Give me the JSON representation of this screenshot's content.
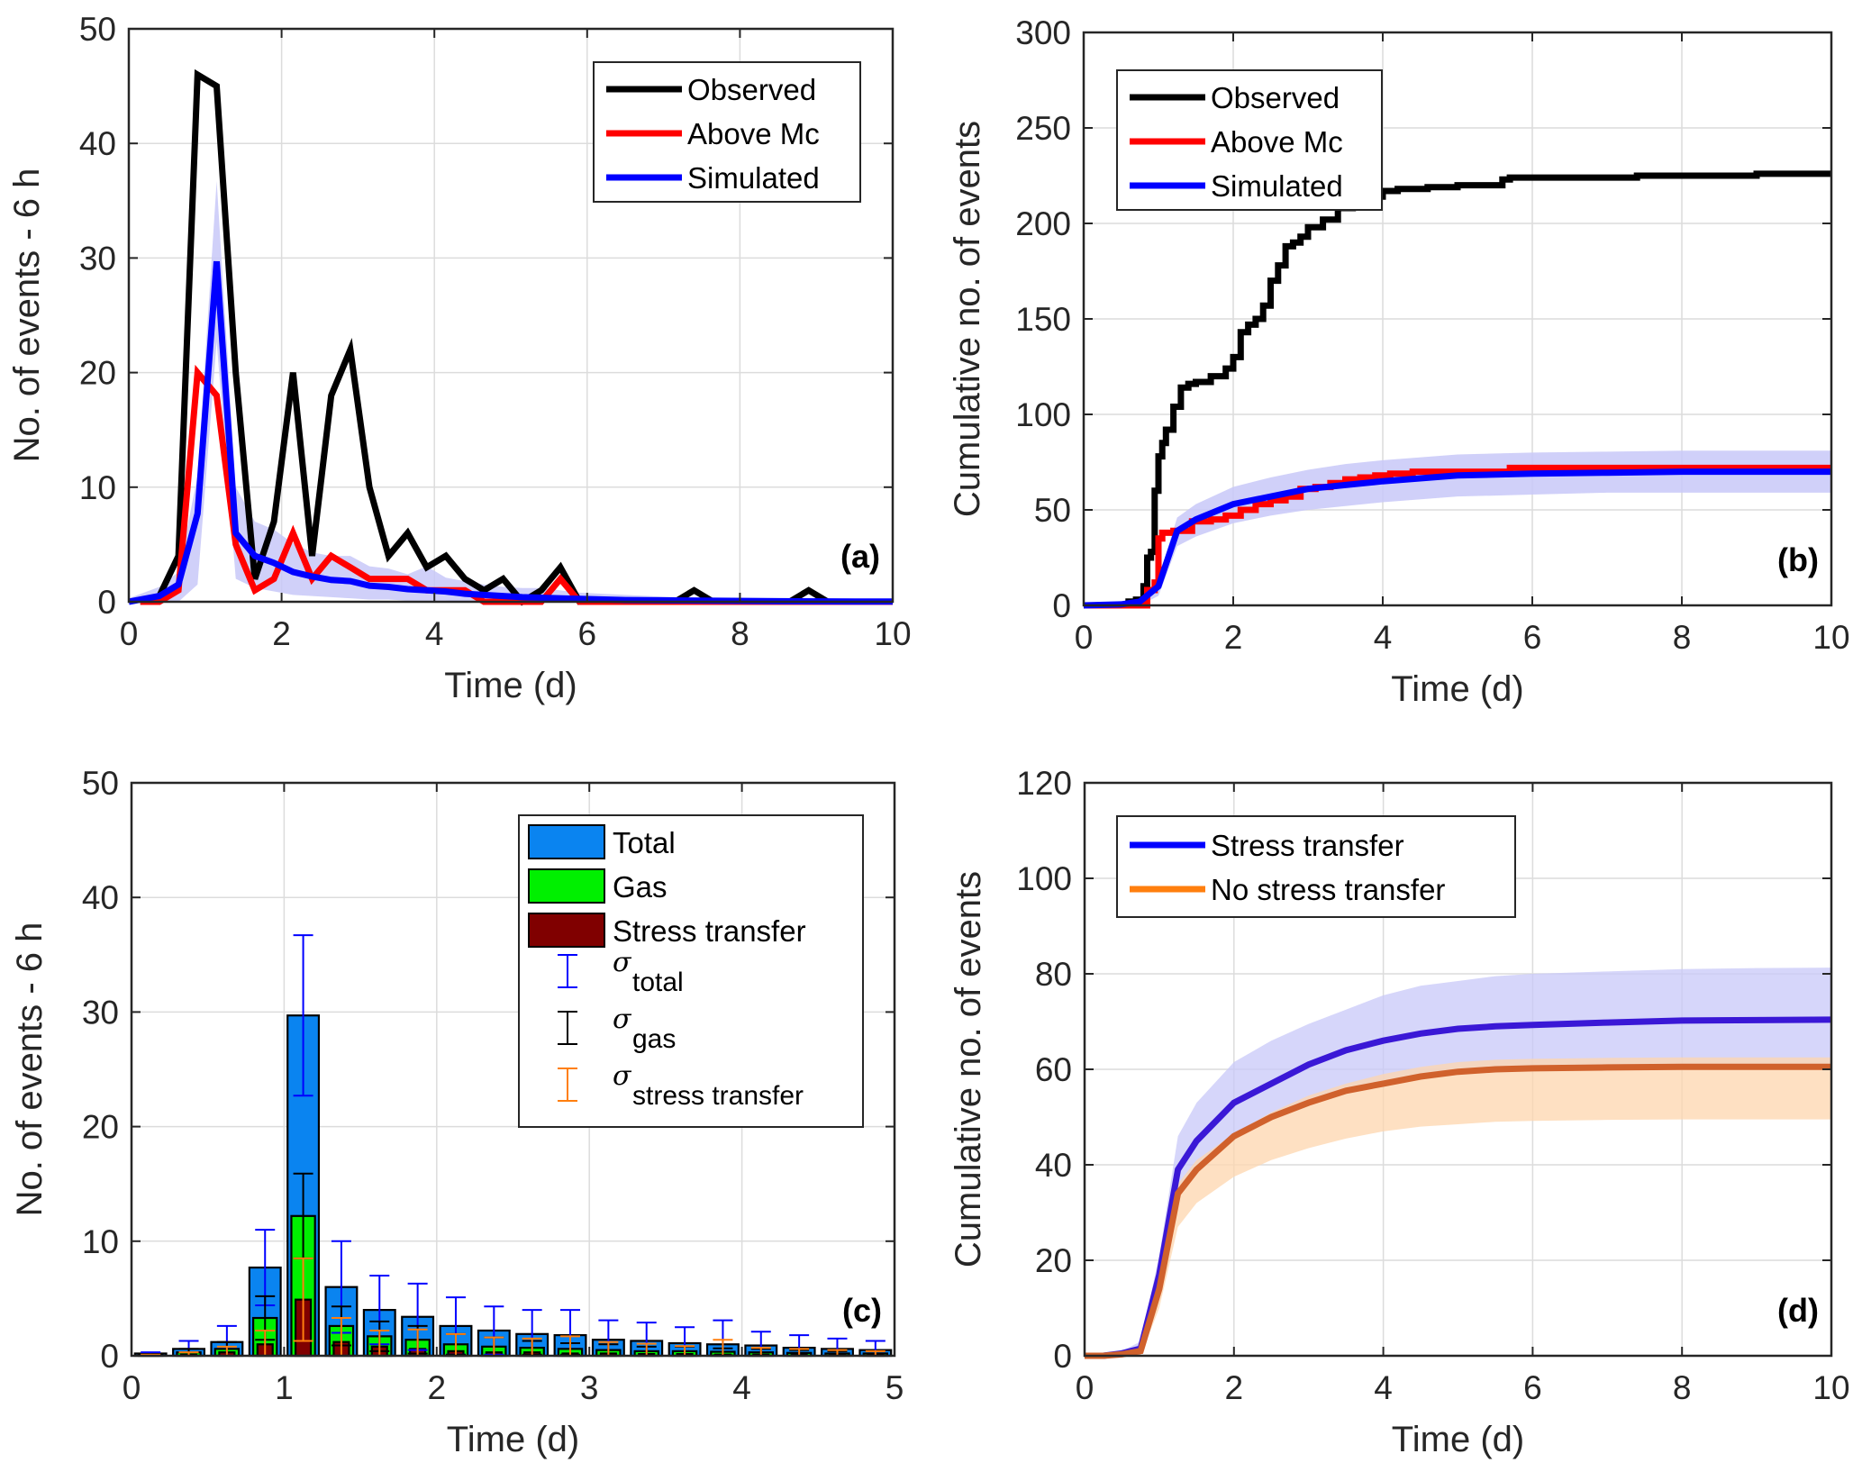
{
  "figure": {
    "panels": [
      "a",
      "b",
      "c",
      "d"
    ]
  },
  "chart_data": [
    {
      "id": "a",
      "type": "line",
      "panel_label": "(a)",
      "title": "",
      "xlabel": "Time (d)",
      "ylabel": "No. of events - 6 h",
      "xlim": [
        0,
        10
      ],
      "ylim": [
        0,
        50
      ],
      "xticks": [
        0,
        2,
        4,
        6,
        8,
        10
      ],
      "yticks": [
        0,
        10,
        20,
        30,
        40,
        50
      ],
      "grid": true,
      "legend_position": "top-right",
      "series": [
        {
          "name": "Observed",
          "color": "#000000",
          "x": [
            0.15,
            0.4,
            0.65,
            0.9,
            1.15,
            1.4,
            1.65,
            1.9,
            2.15,
            2.4,
            2.65,
            2.9,
            3.15,
            3.4,
            3.65,
            3.9,
            4.15,
            4.4,
            4.65,
            4.9,
            5.15,
            5.4,
            5.65,
            5.9,
            6.15,
            6.9,
            7.15,
            7.4,
            7.65,
            8.4,
            8.65,
            8.9,
            9.15,
            9.4,
            10.0
          ],
          "y": [
            0,
            0.5,
            4,
            46,
            45,
            20,
            2,
            7,
            20,
            4,
            18,
            22,
            10,
            4,
            6,
            3,
            4,
            2,
            1,
            2,
            0,
            1,
            3,
            0,
            0,
            0,
            0,
            1,
            0,
            0,
            0,
            1,
            0,
            0,
            0
          ]
        },
        {
          "name": "Above Mc",
          "color": "#ff0000",
          "x": [
            0.15,
            0.4,
            0.65,
            0.9,
            1.15,
            1.4,
            1.65,
            1.9,
            2.15,
            2.4,
            2.65,
            2.9,
            3.15,
            3.4,
            3.65,
            3.9,
            4.15,
            4.4,
            4.65,
            4.9,
            5.15,
            5.4,
            5.65,
            5.9,
            6.5,
            7.5,
            8.5,
            9.5,
            10.0
          ],
          "y": [
            0,
            0,
            1,
            20,
            18,
            5,
            1,
            2,
            6,
            2,
            4,
            3,
            2,
            2,
            2,
            1,
            1,
            1,
            0,
            0,
            0,
            0,
            2,
            0,
            0,
            0,
            0,
            0,
            0
          ]
        },
        {
          "name": "Simulated",
          "color": "#0000ff",
          "x": [
            0.0,
            0.4,
            0.65,
            0.9,
            1.15,
            1.4,
            1.65,
            1.9,
            2.15,
            2.4,
            2.65,
            2.9,
            3.15,
            3.4,
            3.65,
            3.9,
            4.15,
            4.4,
            4.65,
            4.9,
            5.15,
            5.4,
            5.9,
            6.5,
            7.5,
            8.5,
            9.5,
            10.0
          ],
          "y": [
            0,
            0.5,
            1.5,
            7.7,
            29.7,
            6.0,
            4.0,
            3.4,
            2.6,
            2.2,
            1.9,
            1.8,
            1.4,
            1.3,
            1.1,
            1.0,
            0.9,
            0.7,
            0.6,
            0.5,
            0.4,
            0.35,
            0.25,
            0.15,
            0.1,
            0.05,
            0.02,
            0.02
          ],
          "band_lower": [
            0,
            0,
            0,
            1.5,
            22.7,
            2.0,
            1.2,
            0.9,
            0.6,
            0.5,
            0.4,
            0.3,
            0.2,
            0.2,
            0.1,
            0.1,
            0.1,
            0,
            0,
            0,
            0,
            0,
            0,
            0,
            0,
            0,
            0,
            0
          ],
          "band_upper": [
            0.3,
            1.3,
            2.6,
            11.0,
            36.7,
            10.0,
            7.0,
            6.3,
            5.1,
            4.3,
            4.0,
            4.0,
            3.1,
            2.9,
            2.4,
            3.1,
            2.1,
            1.8,
            1.5,
            1.3,
            1.2,
            1.2,
            0.8,
            0.6,
            0.3,
            0.2,
            0.1,
            0.1
          ],
          "band_color": "#c8c8f8"
        }
      ]
    },
    {
      "id": "b",
      "type": "line",
      "panel_label": "(b)",
      "title": "",
      "xlabel": "Time (d)",
      "ylabel": "Cumulative no. of events",
      "xlim": [
        0,
        10
      ],
      "ylim": [
        0,
        300
      ],
      "xticks": [
        0,
        2,
        4,
        6,
        8,
        10
      ],
      "yticks": [
        0,
        50,
        100,
        150,
        200,
        250,
        300
      ],
      "grid": true,
      "legend_position": "top-left",
      "series": [
        {
          "name": "Observed",
          "color": "#000000",
          "step": true,
          "x": [
            0,
            0.6,
            0.7,
            0.8,
            0.85,
            0.9,
            0.95,
            1.0,
            1.05,
            1.1,
            1.2,
            1.3,
            1.4,
            1.5,
            1.7,
            1.9,
            2.0,
            2.1,
            2.2,
            2.3,
            2.4,
            2.5,
            2.6,
            2.7,
            2.8,
            2.9,
            3.0,
            3.2,
            3.4,
            3.6,
            3.8,
            4.0,
            4.2,
            4.4,
            4.6,
            5.0,
            5.6,
            5.7,
            7.0,
            7.4,
            8.9,
            9.0,
            10.0
          ],
          "y": [
            0,
            2,
            3,
            10,
            25,
            28,
            60,
            78,
            85,
            92,
            104,
            114,
            116,
            117,
            120,
            124,
            130,
            143,
            147,
            150,
            157,
            170,
            178,
            188,
            190,
            193,
            198,
            202,
            208,
            211,
            214,
            217,
            218,
            218,
            219,
            220,
            223,
            224,
            224,
            225,
            225,
            226,
            226
          ]
        },
        {
          "name": "Above Mc",
          "color": "#ff0000",
          "step": true,
          "x": [
            0,
            0.7,
            0.85,
            0.95,
            1.0,
            1.05,
            1.2,
            1.45,
            1.7,
            1.9,
            2.1,
            2.3,
            2.5,
            2.7,
            2.9,
            3.1,
            3.3,
            3.5,
            3.7,
            3.9,
            4.1,
            4.4,
            4.6,
            5.6,
            5.7,
            10.0
          ],
          "y": [
            0,
            0,
            8,
            12,
            35,
            38,
            39,
            44,
            45,
            47,
            50,
            53,
            55,
            57,
            61,
            62,
            64,
            66,
            67,
            68,
            69,
            70,
            70,
            70,
            72,
            72
          ]
        },
        {
          "name": "Simulated",
          "color": "#0000ff",
          "x": [
            0,
            0.5,
            0.75,
            1.0,
            1.25,
            1.5,
            2.0,
            2.5,
            3.0,
            3.5,
            4.0,
            5.0,
            6.0,
            7.0,
            8.0,
            9.0,
            10.0
          ],
          "y": [
            0,
            0.5,
            2,
            10,
            39,
            45,
            53,
            57,
            61,
            63,
            65,
            68,
            69,
            69.5,
            70,
            70,
            70
          ],
          "band_lower": [
            0,
            0,
            0,
            5,
            31,
            36,
            43,
            47,
            50,
            52,
            54,
            57,
            58,
            59,
            59,
            59,
            59
          ],
          "band_upper": [
            0.5,
            1,
            3,
            14,
            46,
            53,
            62,
            67,
            71,
            74,
            76,
            79,
            80,
            80.5,
            81,
            81,
            81
          ],
          "band_color": "#c8c8f8"
        }
      ]
    },
    {
      "id": "c",
      "type": "bar",
      "panel_label": "(c)",
      "title": "",
      "xlabel": "Time (d)",
      "ylabel": "No. of events - 6 h",
      "xlim": [
        0,
        5
      ],
      "ylim": [
        0,
        50
      ],
      "xticks": [
        0,
        1,
        2,
        3,
        4,
        5
      ],
      "yticks": [
        0,
        10,
        20,
        30,
        40,
        50
      ],
      "grid": true,
      "legend_position": "top-right",
      "bin_width_days": 0.25,
      "categories": [
        0.125,
        0.375,
        0.625,
        0.875,
        1.125,
        1.375,
        1.625,
        1.875,
        2.125,
        2.375,
        2.625,
        2.875,
        3.125,
        3.375,
        3.625,
        3.875,
        4.125,
        4.375,
        4.625,
        4.875
      ],
      "series": [
        {
          "name": "Total",
          "color": "#0a84f0",
          "values": [
            0.2,
            0.6,
            1.2,
            7.7,
            29.7,
            6.0,
            4.0,
            3.4,
            2.6,
            2.2,
            1.9,
            1.8,
            1.4,
            1.3,
            1.1,
            1.0,
            0.9,
            0.7,
            0.6,
            0.5
          ],
          "error": [
            0.1,
            0.7,
            1.4,
            3.3,
            7.0,
            4.0,
            3.0,
            2.9,
            2.5,
            2.1,
            2.1,
            2.2,
            1.7,
            1.6,
            1.4,
            2.1,
            1.2,
            1.1,
            0.9,
            0.8
          ],
          "error_color": "#0000ff"
        },
        {
          "name": "Gas",
          "color": "#00f000",
          "values": [
            0.1,
            0.3,
            0.6,
            3.3,
            12.2,
            2.6,
            1.7,
            1.4,
            1.0,
            0.8,
            0.7,
            0.6,
            0.5,
            0.4,
            0.4,
            0.35,
            0.3,
            0.25,
            0.2,
            0.2
          ],
          "error": [
            0.05,
            0.3,
            0.6,
            1.9,
            3.7,
            1.7,
            1.3,
            1.2,
            0.9,
            0.8,
            0.6,
            0.5,
            0.5,
            0.4,
            0.4,
            0.3,
            0.3,
            0.25,
            0.2,
            0.2
          ],
          "error_color": "#000000"
        },
        {
          "name": "Stress transfer",
          "color": "#800000",
          "values": [
            0.05,
            0.1,
            0.3,
            1.0,
            4.9,
            1.2,
            0.8,
            0.6,
            0.4,
            0.3,
            0.3,
            0.2,
            0.2,
            0.15,
            0.15,
            0.1,
            0.1,
            0.1,
            0.1,
            0.1
          ],
          "error": [
            0.05,
            0.2,
            0.5,
            1.2,
            3.6,
            2.1,
            1.4,
            1.7,
            1.5,
            1.3,
            1.2,
            1.5,
            1.0,
            0.9,
            0.7,
            1.3,
            0.6,
            0.5,
            0.4,
            0.3
          ],
          "error_color": "#ff7f0e"
        }
      ],
      "legend_entries": [
        {
          "label": "Total",
          "kind": "patch",
          "color": "#0a84f0"
        },
        {
          "label": "Gas",
          "kind": "patch",
          "color": "#00f000"
        },
        {
          "label": "Stress transfer",
          "kind": "patch",
          "color": "#800000"
        },
        {
          "symbol": "σ",
          "subscript": "total",
          "kind": "errorbar",
          "color": "#0000ff"
        },
        {
          "symbol": "σ",
          "subscript": "gas",
          "kind": "errorbar",
          "color": "#000000"
        },
        {
          "symbol": "σ",
          "subscript": "stress transfer",
          "kind": "errorbar",
          "color": "#ff7f0e"
        }
      ]
    },
    {
      "id": "d",
      "type": "line",
      "panel_label": "(d)",
      "title": "",
      "xlabel": "Time (d)",
      "ylabel": "Cumulative no. of events",
      "xlim": [
        0,
        10
      ],
      "ylim": [
        0,
        120
      ],
      "xticks": [
        0,
        2,
        4,
        6,
        8,
        10
      ],
      "yticks": [
        0,
        20,
        40,
        60,
        80,
        100,
        120
      ],
      "grid": true,
      "legend_position": "top-left",
      "series": [
        {
          "name": "Stress transfer",
          "color": "#3a18d6",
          "legend_color": "#0000ff",
          "x": [
            0,
            0.25,
            0.5,
            0.75,
            1.0,
            1.25,
            1.5,
            2.0,
            2.5,
            3.0,
            3.5,
            4.0,
            4.5,
            5.0,
            5.5,
            6.0,
            7.0,
            8.0,
            9.0,
            10.0
          ],
          "y": [
            0,
            0,
            0.5,
            1.5,
            17,
            39,
            45,
            53,
            57,
            61,
            64,
            66,
            67.5,
            68.5,
            69,
            69.3,
            69.8,
            70.2,
            70.3,
            70.4
          ],
          "band_lower": [
            0,
            0,
            0,
            0.5,
            13,
            34,
            40,
            46,
            50,
            53,
            55.5,
            57,
            58.5,
            59.5,
            60,
            60.3,
            60.5,
            60.6,
            60.7,
            60.8
          ],
          "band_upper": [
            0,
            0.2,
            1,
            3,
            21,
            46,
            53,
            61.5,
            66,
            69.5,
            72.5,
            75.5,
            77.5,
            78.5,
            79.5,
            80,
            80.5,
            81,
            81.2,
            81.3
          ],
          "band_color": "#c8c8f8"
        },
        {
          "name": "No stress transfer",
          "color": "#d0612c",
          "legend_color": "#ff7f0e",
          "x": [
            0,
            0.25,
            0.5,
            0.75,
            1.0,
            1.25,
            1.5,
            2.0,
            2.5,
            3.0,
            3.5,
            4.0,
            4.5,
            5.0,
            5.5,
            6.0,
            7.0,
            8.0,
            9.0,
            10.0
          ],
          "y": [
            0,
            0,
            0.3,
            1.0,
            14,
            34,
            39,
            46,
            50,
            53,
            55.5,
            57,
            58.5,
            59.5,
            60,
            60.2,
            60.4,
            60.5,
            60.5,
            60.5
          ],
          "band_lower": [
            0,
            0,
            0,
            0,
            10,
            27,
            32,
            37.5,
            41,
            43.5,
            45.5,
            47,
            48,
            48.5,
            49,
            49.2,
            49.4,
            49.5,
            49.5,
            49.5
          ],
          "band_upper": [
            0,
            0.2,
            0.6,
            2,
            18,
            36,
            41,
            46.5,
            51,
            54.5,
            57,
            59,
            60.5,
            61.5,
            62,
            62.2,
            62.4,
            62.5,
            62.5,
            62.5
          ],
          "band_color": "#fdd6ad"
        }
      ]
    }
  ]
}
